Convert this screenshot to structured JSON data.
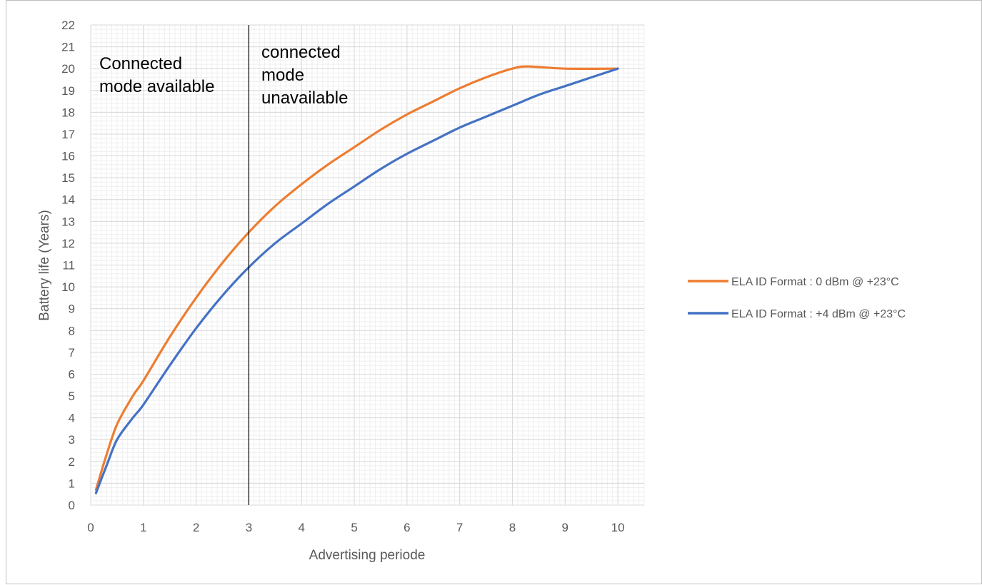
{
  "chart_data": {
    "type": "line",
    "xlabel": "Advertising periode",
    "ylabel": "Battery life (Years)",
    "xlim": [
      0,
      10.5
    ],
    "ylim": [
      0,
      22
    ],
    "x_ticks": [
      "0",
      "1",
      "2",
      "3",
      "4",
      "5",
      "6",
      "7",
      "8",
      "9",
      "10"
    ],
    "y_ticks": [
      "0",
      "1",
      "2",
      "3",
      "4",
      "5",
      "6",
      "7",
      "8",
      "9",
      "10",
      "11",
      "12",
      "13",
      "14",
      "15",
      "16",
      "17",
      "18",
      "19",
      "20",
      "21",
      "22"
    ],
    "grid": "on (major and minor)",
    "legend_position": "right",
    "vertical_marker_x": 3,
    "annotations": {
      "left": [
        "Connected",
        "mode available"
      ],
      "right": [
        "connected",
        "mode",
        "unavailable"
      ]
    },
    "series": [
      {
        "name": "ELA ID Format : 0 dBm @ +23°C",
        "color": "#ed7d31",
        "x": [
          0.1,
          0.3,
          0.5,
          0.8,
          1,
          1.5,
          2,
          2.5,
          3,
          3.5,
          4,
          4.5,
          5,
          5.5,
          6,
          6.5,
          7,
          7.5,
          8,
          8.3,
          9,
          10
        ],
        "y": [
          0.7,
          2.3,
          3.7,
          5.0,
          5.7,
          7.7,
          9.5,
          11.1,
          12.5,
          13.7,
          14.7,
          15.6,
          16.4,
          17.2,
          17.9,
          18.5,
          19.1,
          19.6,
          20.0,
          20.1,
          20.0,
          20.0
        ]
      },
      {
        "name": "ELA ID Format : +4 dBm @ +23°C",
        "color": "#4472c4",
        "x": [
          0.1,
          0.3,
          0.5,
          0.8,
          1,
          1.5,
          2,
          2.5,
          3,
          3.5,
          4,
          4.5,
          5,
          5.5,
          6,
          6.5,
          7,
          7.5,
          8,
          8.5,
          9,
          9.5,
          10
        ],
        "y": [
          0.55,
          1.8,
          3.0,
          4.0,
          4.6,
          6.4,
          8.1,
          9.6,
          10.9,
          12.0,
          12.9,
          13.8,
          14.6,
          15.4,
          16.1,
          16.7,
          17.3,
          17.8,
          18.3,
          18.8,
          19.2,
          19.6,
          20.0
        ]
      }
    ]
  }
}
